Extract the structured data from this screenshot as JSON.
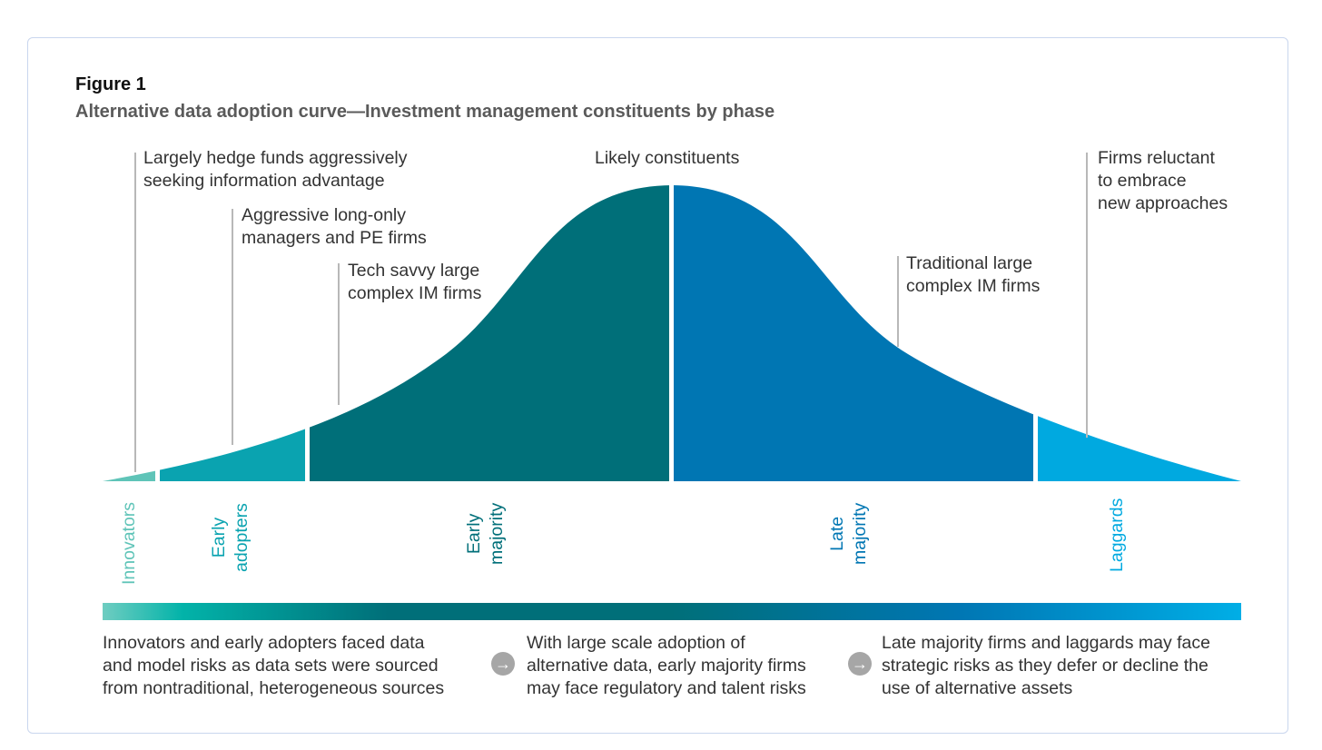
{
  "figure": {
    "number": "Figure 1",
    "title": "Alternative data adoption curve—Investment management constituents by phase"
  },
  "annotations": {
    "hedge_funds": [
      "Largely hedge funds aggressively",
      "seeking information advantage"
    ],
    "long_only": [
      "Aggressive long-only",
      "managers and PE firms"
    ],
    "tech_savvy": [
      "Tech savvy large",
      "complex IM firms"
    ],
    "likely": "Likely constituents",
    "traditional": [
      "Traditional large",
      "complex IM firms"
    ],
    "reluctant": [
      "Firms reluctant",
      "to embrace",
      "new approaches"
    ]
  },
  "phases": [
    {
      "label": "Innovators",
      "color": "#5fc4b8"
    },
    {
      "label": "Early adopters",
      "color": "#0aa3b0"
    },
    {
      "label": "Early majority",
      "color": "#006f79"
    },
    {
      "label": "Late majority",
      "color": "#0076b3"
    },
    {
      "label": "Laggards",
      "color": "#00a9e0"
    }
  ],
  "phase_lines": {
    "innovators": "Innovators",
    "early_adopters": [
      "Early",
      "adopters"
    ],
    "early_majority": [
      "Early",
      "majority"
    ],
    "late_majority": [
      "Late",
      "majority"
    ],
    "laggards": "Laggards"
  },
  "bottom": {
    "left": [
      "Innovators and early adopters faced data",
      "and model risks as data sets were sourced",
      "from nontraditional, heterogeneous sources"
    ],
    "middle": [
      "With large scale adoption of",
      "alternative data, early majority firms",
      "may face regulatory and talent risks"
    ],
    "right": [
      "Late majority firms and laggards may face",
      "strategic risks as they defer or decline the",
      "use of alternative assets"
    ],
    "arrow_glyph": "→"
  },
  "colors": {
    "innovators": "#5fc4b8",
    "early_adopters": "#0aa3b0",
    "early_majority": "#006f79",
    "late_majority": "#0076b3",
    "laggards": "#00a9e0",
    "leader_line": "#b8b8b8"
  }
}
